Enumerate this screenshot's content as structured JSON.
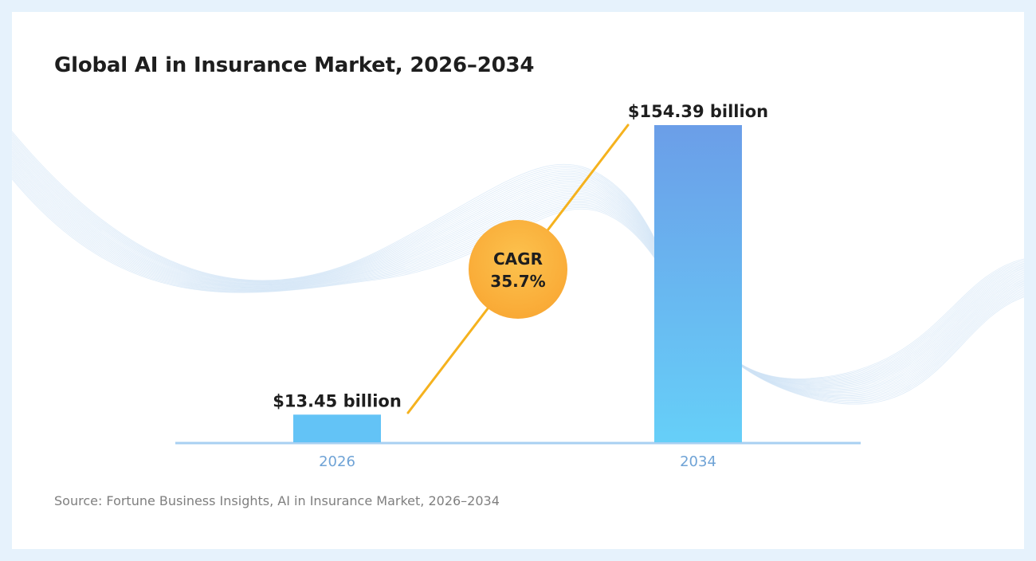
{
  "title": "Global AI in Insurance Market, 2026–2034",
  "source": "Source: Fortune Business Insights, AI in Insurance Market, 2026–2034",
  "chart_data": {
    "type": "bar",
    "title": "Global AI in Insurance Market, 2026–2034",
    "categories": [
      "2026",
      "2034"
    ],
    "values": [
      13.45,
      154.39
    ],
    "unit": "billion USD",
    "value_labels": [
      "$13.45 billion",
      "$154.39 billion"
    ],
    "ylim": [
      0,
      160
    ],
    "grid": false,
    "annotation": {
      "line1": "CAGR",
      "line2": "35.7%",
      "value": 35.7
    },
    "colors": {
      "bar_top": "#6b9ee8",
      "bar_bottom": "#66cff8",
      "baseline": "#a8d0f2",
      "cagr_line": "#f5b21e",
      "cagr_circle": "#fbb43f",
      "axis_label": "#6fa3d6"
    }
  }
}
